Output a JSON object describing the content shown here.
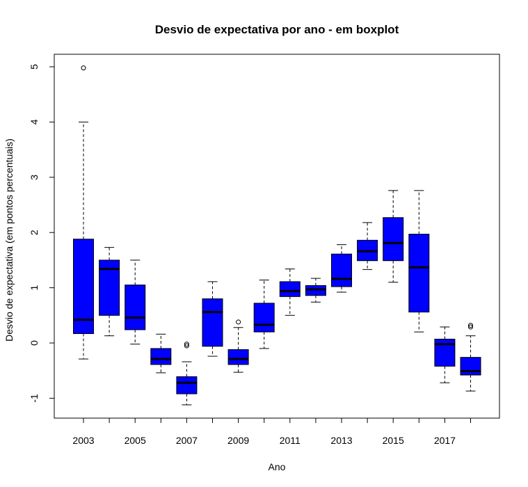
{
  "chart_data": {
    "type": "boxplot",
    "title": "Desvio de expectativa por ano - em boxplot",
    "xlabel": "Ano",
    "ylabel": "Desvio de expectativa (em pontos percentuais)",
    "ylim": [
      -1.4,
      5.25
    ],
    "yticks": [
      -1,
      0,
      1,
      2,
      3,
      4,
      5
    ],
    "categories": [
      "2003",
      "2004",
      "2005",
      "2006",
      "2007",
      "2008",
      "2009",
      "2010",
      "2011",
      "2012",
      "2013",
      "2014",
      "2015",
      "2016",
      "2017",
      "2018"
    ],
    "xtick_labels": [
      "2003",
      "",
      "2005",
      "",
      "2007",
      "",
      "2009",
      "",
      "2011",
      "",
      "2013",
      "",
      "2015",
      "",
      "2017",
      ""
    ],
    "box_color": "#0000ff",
    "boxes": [
      {
        "year": "2003",
        "whisker_low": -0.29,
        "q1": 0.17,
        "median": 0.42,
        "q3": 1.88,
        "whisker_high": 4.0,
        "outliers": [
          4.98
        ]
      },
      {
        "year": "2004",
        "whisker_low": 0.13,
        "q1": 0.5,
        "median": 1.34,
        "q3": 1.5,
        "whisker_high": 1.73,
        "outliers": []
      },
      {
        "year": "2005",
        "whisker_low": -0.02,
        "q1": 0.24,
        "median": 0.46,
        "q3": 1.05,
        "whisker_high": 1.5,
        "outliers": []
      },
      {
        "year": "2006",
        "whisker_low": -0.54,
        "q1": -0.39,
        "median": -0.29,
        "q3": -0.1,
        "whisker_high": 0.16,
        "outliers": []
      },
      {
        "year": "2007",
        "whisker_low": -1.12,
        "q1": -0.92,
        "median": -0.72,
        "q3": -0.61,
        "whisker_high": -0.34,
        "outliers": [
          -0.02,
          -0.05
        ]
      },
      {
        "year": "2008",
        "whisker_low": -0.24,
        "q1": -0.06,
        "median": 0.56,
        "q3": 0.8,
        "whisker_high": 1.11,
        "outliers": []
      },
      {
        "year": "2009",
        "whisker_low": -0.53,
        "q1": -0.39,
        "median": -0.29,
        "q3": -0.12,
        "whisker_high": 0.28,
        "outliers": [
          0.38
        ]
      },
      {
        "year": "2010",
        "whisker_low": -0.1,
        "q1": 0.2,
        "median": 0.33,
        "q3": 0.72,
        "whisker_high": 1.14,
        "outliers": []
      },
      {
        "year": "2011",
        "whisker_low": 0.5,
        "q1": 0.84,
        "median": 0.94,
        "q3": 1.11,
        "whisker_high": 1.34,
        "outliers": []
      },
      {
        "year": "2012",
        "whisker_low": 0.74,
        "q1": 0.86,
        "median": 0.97,
        "q3": 1.04,
        "whisker_high": 1.17,
        "outliers": []
      },
      {
        "year": "2013",
        "whisker_low": 0.92,
        "q1": 1.02,
        "median": 1.16,
        "q3": 1.61,
        "whisker_high": 1.78,
        "outliers": []
      },
      {
        "year": "2014",
        "whisker_low": 1.33,
        "q1": 1.49,
        "median": 1.66,
        "q3": 1.86,
        "whisker_high": 2.18,
        "outliers": []
      },
      {
        "year": "2015",
        "whisker_low": 1.1,
        "q1": 1.49,
        "median": 1.81,
        "q3": 2.27,
        "whisker_high": 2.76,
        "outliers": []
      },
      {
        "year": "2016",
        "whisker_low": 0.2,
        "q1": 0.56,
        "median": 1.37,
        "q3": 1.97,
        "whisker_high": 2.76,
        "outliers": []
      },
      {
        "year": "2017",
        "whisker_low": -0.72,
        "q1": -0.42,
        "median": -0.02,
        "q3": 0.07,
        "whisker_high": 0.29,
        "outliers": []
      },
      {
        "year": "2018",
        "whisker_low": -0.87,
        "q1": -0.58,
        "median": -0.51,
        "q3": -0.26,
        "whisker_high": 0.13,
        "outliers": [
          0.29,
          0.32
        ]
      }
    ]
  }
}
